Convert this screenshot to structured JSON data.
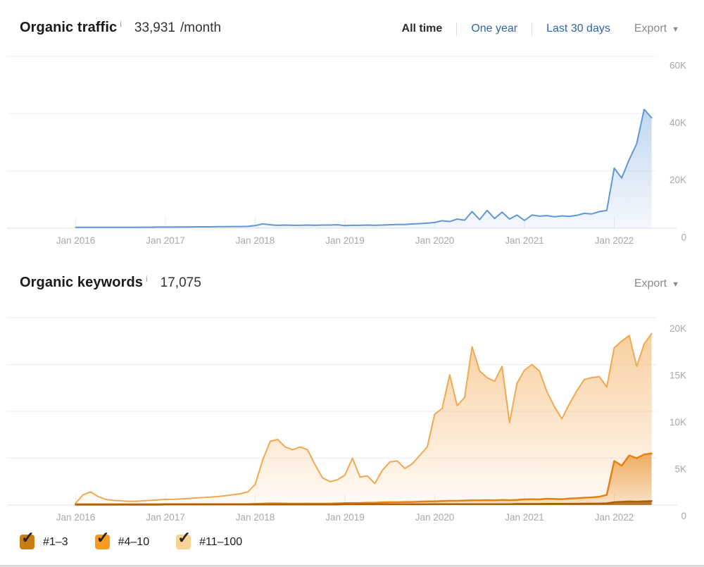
{
  "traffic_section": {
    "title": "Organic traffic",
    "info_icon": "i",
    "value": "33,931",
    "suffix": "/month",
    "tabs": [
      {
        "label": "All time",
        "active": true
      },
      {
        "label": "One year",
        "active": false
      },
      {
        "label": "Last 30 days",
        "active": false
      }
    ],
    "export_label": "Export",
    "export_caret": "▼",
    "link_color": "#2d66ab"
  },
  "keywords_section": {
    "title": "Organic keywords",
    "info_icon": "i",
    "value": "17,075",
    "export_label": "Export",
    "export_caret": "▼"
  },
  "legend": {
    "check": "✓",
    "items": [
      {
        "label": "#1–3",
        "color": "#c87d12"
      },
      {
        "label": "#4–10",
        "color": "#f79a1e"
      },
      {
        "label": "#11–100",
        "color": "#f7d295"
      }
    ]
  },
  "chart_data": [
    {
      "type": "area",
      "title": "Organic traffic",
      "x_start": "Jan 2016",
      "x_end": "Jun 2022",
      "interval": "monthly",
      "x_labels": [
        "Jan 2016",
        "Jan 2017",
        "Jan 2018",
        "Jan 2019",
        "Jan 2020",
        "Jan 2021",
        "Jan 2022"
      ],
      "ymax_k": 60,
      "y_ticks": [
        {
          "label": "0",
          "value_k": 0
        },
        {
          "label": "20K",
          "value_k": 20
        },
        {
          "label": "40K",
          "value_k": 40
        },
        {
          "label": "60K",
          "value_k": 60
        }
      ],
      "series": [
        {
          "name": "Organic traffic",
          "color": "#5f97d7",
          "fill": "#5f97d7",
          "fill_op": [
            0.38,
            0.07
          ],
          "width": 2,
          "values_k": [
            0.3,
            0.3,
            0.3,
            0.3,
            0.3,
            0.3,
            0.3,
            0.3,
            0.3,
            0.35,
            0.35,
            0.4,
            0.4,
            0.4,
            0.45,
            0.45,
            0.5,
            0.5,
            0.5,
            0.55,
            0.55,
            0.6,
            0.6,
            0.65,
            0.9,
            1.5,
            1.2,
            1.0,
            1.1,
            1.0,
            1.0,
            1.1,
            1.0,
            1.1,
            1.1,
            1.2,
            0.9,
            1.0,
            1.0,
            1.1,
            1.0,
            1.1,
            1.2,
            1.3,
            1.3,
            1.5,
            1.6,
            1.8,
            2.0,
            2.6,
            2.3,
            3.2,
            2.8,
            5.8,
            3.0,
            6.2,
            3.4,
            5.6,
            3.2,
            4.6,
            2.7,
            4.6,
            4.2,
            4.4,
            4.0,
            4.3,
            4.1,
            4.5,
            5.2,
            5.0,
            5.8,
            6.2,
            21.0,
            17.5,
            24.0,
            29.5,
            41.5,
            38.5
          ]
        }
      ]
    },
    {
      "type": "area",
      "title": "Organic keywords",
      "x_start": "Jan 2016",
      "x_end": "Jun 2022",
      "interval": "monthly",
      "x_labels": [
        "Jan 2016",
        "Jan 2017",
        "Jan 2018",
        "Jan 2019",
        "Jan 2020",
        "Jan 2021",
        "Jan 2022"
      ],
      "ymax_k": 20,
      "y_ticks": [
        {
          "label": "0",
          "value_k": 0
        },
        {
          "label": "5K",
          "value_k": 5
        },
        {
          "label": "10K",
          "value_k": 10
        },
        {
          "label": "15K",
          "value_k": 15
        },
        {
          "label": "20K",
          "value_k": 20
        }
      ],
      "series": [
        {
          "name": "#11–100",
          "color": "#f2a850",
          "fill": "#f2a850",
          "fill_op": [
            0.55,
            0.05
          ],
          "width": 2,
          "values_k": [
            0.2,
            1.1,
            1.4,
            0.9,
            0.6,
            0.5,
            0.45,
            0.4,
            0.4,
            0.45,
            0.5,
            0.55,
            0.6,
            0.6,
            0.65,
            0.7,
            0.75,
            0.8,
            0.85,
            0.9,
            1.0,
            1.1,
            1.2,
            1.4,
            2.2,
            4.8,
            6.8,
            7.0,
            6.2,
            5.9,
            6.2,
            5.9,
            4.3,
            2.9,
            2.5,
            2.7,
            3.2,
            5.0,
            3.0,
            3.1,
            2.3,
            3.7,
            4.6,
            4.7,
            3.9,
            4.4,
            5.3,
            6.2,
            9.7,
            10.3,
            13.9,
            10.6,
            11.5,
            16.9,
            14.3,
            13.6,
            13.2,
            14.8,
            8.8,
            13.0,
            14.4,
            15.0,
            14.3,
            12.1,
            10.5,
            9.2,
            10.8,
            12.2,
            13.4,
            13.6,
            13.7,
            12.6,
            16.8,
            17.5,
            18.1,
            14.8,
            17.2,
            18.3
          ]
        },
        {
          "name": "#4–10",
          "color": "#e5820f",
          "fill": "#e5820f",
          "fill_op": [
            0.6,
            0.2
          ],
          "width": 2.5,
          "values_k": [
            0.08,
            0.08,
            0.08,
            0.08,
            0.08,
            0.08,
            0.08,
            0.08,
            0.08,
            0.08,
            0.08,
            0.08,
            0.1,
            0.1,
            0.1,
            0.1,
            0.1,
            0.1,
            0.1,
            0.1,
            0.1,
            0.1,
            0.1,
            0.1,
            0.12,
            0.15,
            0.18,
            0.18,
            0.16,
            0.15,
            0.15,
            0.16,
            0.15,
            0.15,
            0.16,
            0.18,
            0.2,
            0.22,
            0.22,
            0.25,
            0.25,
            0.28,
            0.3,
            0.3,
            0.32,
            0.33,
            0.35,
            0.38,
            0.4,
            0.42,
            0.45,
            0.45,
            0.48,
            0.5,
            0.5,
            0.52,
            0.5,
            0.55,
            0.52,
            0.55,
            0.6,
            0.62,
            0.6,
            0.68,
            0.65,
            0.62,
            0.7,
            0.72,
            0.78,
            0.82,
            0.88,
            1.1,
            4.7,
            4.2,
            5.3,
            5.0,
            5.4,
            5.5
          ]
        },
        {
          "name": "#1–3",
          "color": "#a95f06",
          "fill": "#a95f06",
          "fill_op": [
            0.8,
            0.8
          ],
          "width": 2.5,
          "values_k": [
            0.04,
            0.04,
            0.04,
            0.04,
            0.04,
            0.04,
            0.04,
            0.04,
            0.04,
            0.04,
            0.04,
            0.04,
            0.05,
            0.05,
            0.05,
            0.05,
            0.05,
            0.05,
            0.05,
            0.05,
            0.05,
            0.05,
            0.05,
            0.05,
            0.06,
            0.06,
            0.06,
            0.06,
            0.06,
            0.06,
            0.06,
            0.06,
            0.06,
            0.06,
            0.06,
            0.06,
            0.08,
            0.08,
            0.08,
            0.08,
            0.08,
            0.08,
            0.08,
            0.08,
            0.08,
            0.08,
            0.08,
            0.08,
            0.1,
            0.1,
            0.1,
            0.1,
            0.1,
            0.1,
            0.1,
            0.1,
            0.1,
            0.1,
            0.1,
            0.12,
            0.12,
            0.12,
            0.12,
            0.13,
            0.13,
            0.13,
            0.14,
            0.14,
            0.15,
            0.15,
            0.16,
            0.18,
            0.3,
            0.34,
            0.38,
            0.36,
            0.4,
            0.42
          ]
        }
      ]
    }
  ]
}
